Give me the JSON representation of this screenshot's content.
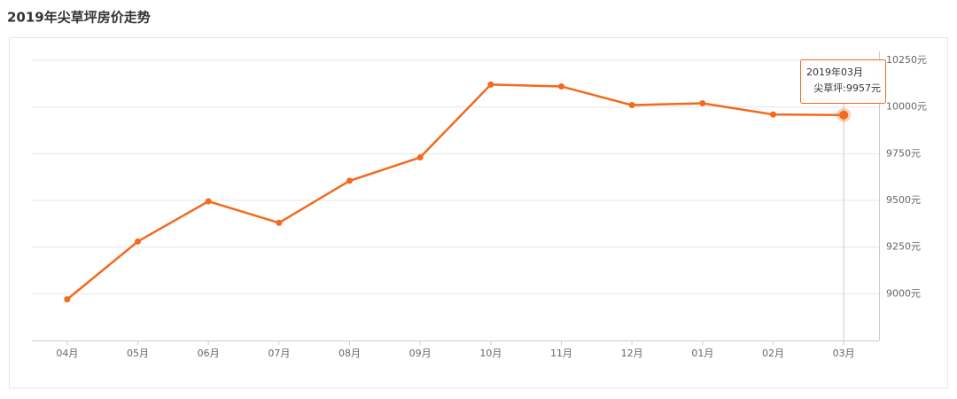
{
  "chart_data": {
    "type": "line",
    "title": "2019年尖草坪房价走势",
    "categories": [
      "04月",
      "05月",
      "06月",
      "07月",
      "08月",
      "09月",
      "10月",
      "11月",
      "12月",
      "01月",
      "02月",
      "03月"
    ],
    "values": [
      8970,
      9280,
      9495,
      9380,
      9605,
      9730,
      10120,
      10110,
      10010,
      10020,
      9960,
      9957
    ],
    "color": "#f26a1b",
    "ylim": [
      8750,
      10250
    ],
    "yticks": [
      {
        "value": 9000,
        "label": "9000元"
      },
      {
        "value": 9250,
        "label": "9250元"
      },
      {
        "value": 9500,
        "label": "9500元"
      },
      {
        "value": 9750,
        "label": "9750元"
      },
      {
        "value": 10000,
        "label": "10000元"
      },
      {
        "value": 10250,
        "label": "10250元"
      }
    ],
    "grid": true,
    "tooltip": {
      "title": "2019年03月",
      "text": "尖草坪:9957元"
    }
  }
}
